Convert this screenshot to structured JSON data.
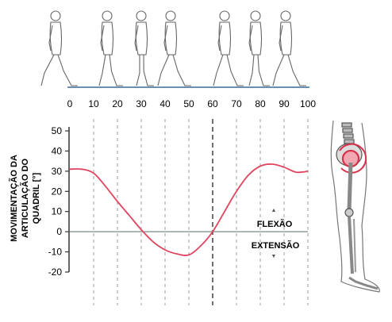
{
  "chart_data": {
    "type": "line",
    "ylabel_lines": [
      "MOVIMENTAÇÃO DA",
      "ARTICULAÇÃO DO",
      "QUADRIL [°]"
    ],
    "xlabel": "",
    "x_ticks": [
      0,
      10,
      20,
      30,
      40,
      50,
      60,
      70,
      80,
      90,
      100
    ],
    "y_ticks": [
      50,
      40,
      30,
      20,
      10,
      0,
      -10,
      -20
    ],
    "xlim": [
      0,
      100
    ],
    "ylim": [
      -20,
      50
    ],
    "grid": "vertical dashed at every 10%",
    "highlighted_gridline_x": 60,
    "annotations": {
      "flexion": "FLEXÃO",
      "extension": "EXTENSÃO"
    },
    "series": [
      {
        "color": "#e0455f",
        "x": [
          0,
          5,
          10,
          15,
          20,
          25,
          30,
          35,
          40,
          45,
          50,
          55,
          60,
          65,
          70,
          75,
          80,
          85,
          90,
          95,
          100
        ],
        "y": [
          31,
          31,
          29,
          22.5,
          15,
          8,
          1,
          -5,
          -9,
          -11,
          -11.5,
          -7,
          0,
          10,
          20,
          28,
          32.5,
          33.5,
          32,
          29.5,
          30
        ]
      }
    ]
  },
  "colors": {
    "curve": "#e0455f",
    "zero_line": "#7a8a8a",
    "grid": "#555555",
    "axis": "#333333"
  },
  "figures": {
    "walking_sequence": "walking-person-silhouettes",
    "side_figure": "leg-skeleton-with-highlighted-hip"
  }
}
